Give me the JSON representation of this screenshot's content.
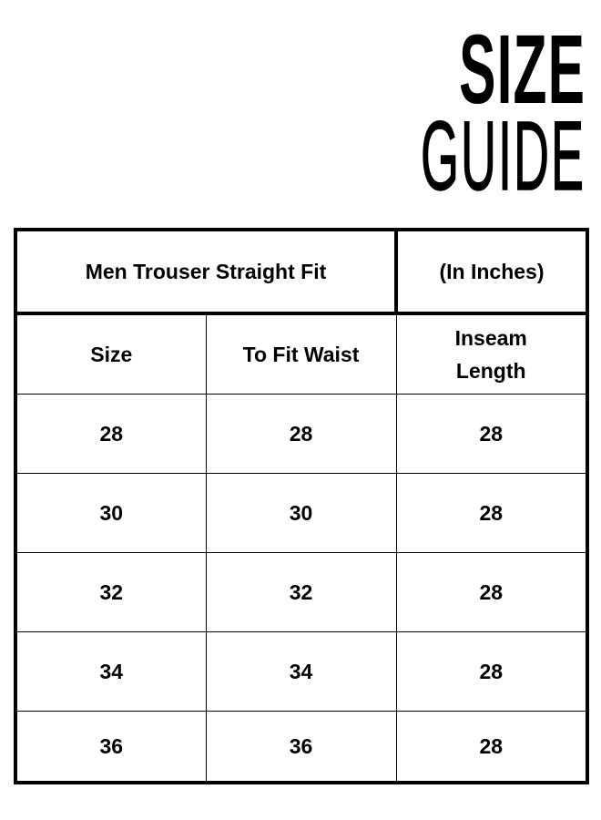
{
  "title": {
    "line1": "SIZE",
    "line2": "GUIDE"
  },
  "table": {
    "caption": "Men Trouser Straight Fit",
    "unit": "(In Inches)",
    "headers": [
      "Size",
      "To Fit Waist",
      "Inseam Length"
    ],
    "rows": [
      [
        "28",
        "28",
        "28"
      ],
      [
        "30",
        "30",
        "28"
      ],
      [
        "32",
        "32",
        "28"
      ],
      [
        "34",
        "34",
        "28"
      ],
      [
        "36",
        "36",
        "28"
      ]
    ]
  }
}
